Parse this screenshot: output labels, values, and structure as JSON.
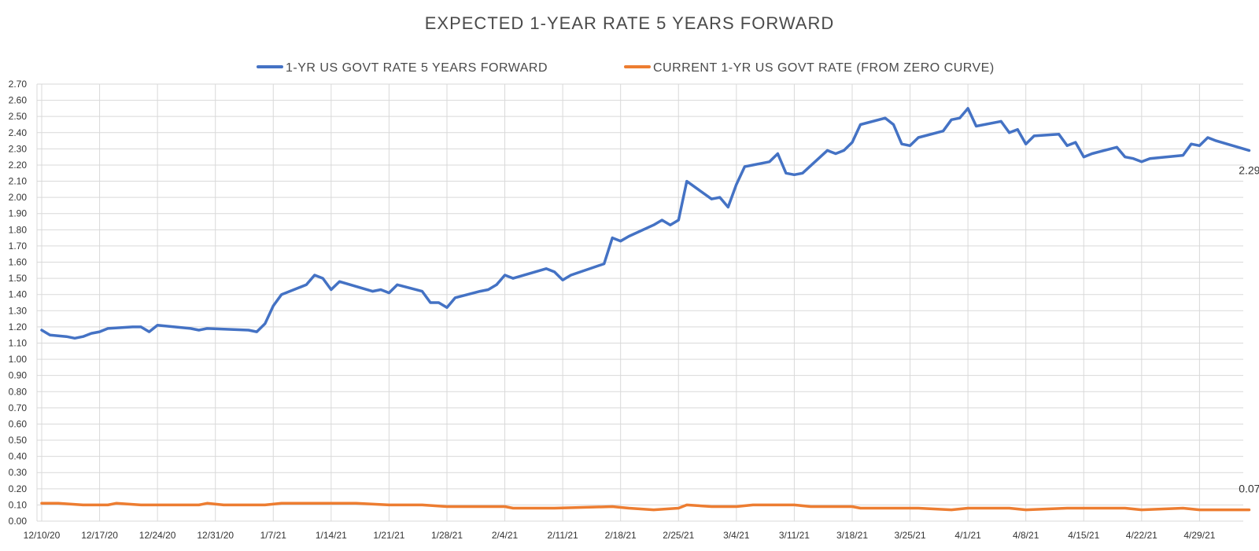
{
  "chart_data": {
    "type": "line",
    "title": "EXPECTED 1-YEAR RATE 5 YEARS FORWARD",
    "xlabel": "",
    "ylabel": "",
    "ylim": [
      0,
      2.7
    ],
    "y_tick_step": 0.1,
    "legend_position": "top-center",
    "grid": true,
    "x_ticks": [
      {
        "label": "12/10/20",
        "day": 0
      },
      {
        "label": "12/17/20",
        "day": 7
      },
      {
        "label": "12/24/20",
        "day": 14
      },
      {
        "label": "12/31/20",
        "day": 21
      },
      {
        "label": "1/7/21",
        "day": 28
      },
      {
        "label": "1/14/21",
        "day": 35
      },
      {
        "label": "1/21/21",
        "day": 42
      },
      {
        "label": "1/28/21",
        "day": 49
      },
      {
        "label": "2/4/21",
        "day": 56
      },
      {
        "label": "2/11/21",
        "day": 63
      },
      {
        "label": "2/18/21",
        "day": 70
      },
      {
        "label": "2/25/21",
        "day": 77
      },
      {
        "label": "3/4/21",
        "day": 84
      },
      {
        "label": "3/11/21",
        "day": 91
      },
      {
        "label": "3/18/21",
        "day": 98
      },
      {
        "label": "3/25/21",
        "day": 105
      },
      {
        "label": "4/1/21",
        "day": 112
      },
      {
        "label": "4/8/21",
        "day": 119
      },
      {
        "label": "4/15/21",
        "day": 126
      },
      {
        "label": "4/22/21",
        "day": 133
      },
      {
        "label": "4/29/21",
        "day": 140
      }
    ],
    "x_range_days": [
      0,
      146
    ],
    "series": [
      {
        "name": "1-YR US GOVT RATE 5 YEARS FORWARD",
        "color": "#4472c4",
        "end_label": "2.29",
        "points": [
          [
            0,
            1.18
          ],
          [
            1,
            1.15
          ],
          [
            3,
            1.14
          ],
          [
            4,
            1.13
          ],
          [
            5,
            1.14
          ],
          [
            6,
            1.16
          ],
          [
            7,
            1.17
          ],
          [
            8,
            1.19
          ],
          [
            11,
            1.2
          ],
          [
            12,
            1.2
          ],
          [
            13,
            1.17
          ],
          [
            14,
            1.21
          ],
          [
            18,
            1.19
          ],
          [
            19,
            1.18
          ],
          [
            20,
            1.19
          ],
          [
            25,
            1.18
          ],
          [
            26,
            1.17
          ],
          [
            27,
            1.22
          ],
          [
            28,
            1.33
          ],
          [
            29,
            1.4
          ],
          [
            32,
            1.46
          ],
          [
            33,
            1.52
          ],
          [
            34,
            1.5
          ],
          [
            35,
            1.43
          ],
          [
            36,
            1.48
          ],
          [
            40,
            1.42
          ],
          [
            41,
            1.43
          ],
          [
            42,
            1.41
          ],
          [
            43,
            1.46
          ],
          [
            46,
            1.42
          ],
          [
            47,
            1.35
          ],
          [
            48,
            1.35
          ],
          [
            49,
            1.32
          ],
          [
            50,
            1.38
          ],
          [
            53,
            1.42
          ],
          [
            54,
            1.43
          ],
          [
            55,
            1.46
          ],
          [
            56,
            1.52
          ],
          [
            57,
            1.5
          ],
          [
            61,
            1.56
          ],
          [
            62,
            1.54
          ],
          [
            63,
            1.49
          ],
          [
            64,
            1.52
          ],
          [
            68,
            1.59
          ],
          [
            69,
            1.75
          ],
          [
            70,
            1.73
          ],
          [
            71,
            1.76
          ],
          [
            74,
            1.83
          ],
          [
            75,
            1.86
          ],
          [
            76,
            1.83
          ],
          [
            77,
            1.86
          ],
          [
            78,
            2.1
          ],
          [
            81,
            1.99
          ],
          [
            82,
            2.0
          ],
          [
            83,
            1.94
          ],
          [
            84,
            2.08
          ],
          [
            85,
            2.19
          ],
          [
            88,
            2.22
          ],
          [
            89,
            2.27
          ],
          [
            90,
            2.15
          ],
          [
            91,
            2.14
          ],
          [
            92,
            2.15
          ],
          [
            95,
            2.29
          ],
          [
            96,
            2.27
          ],
          [
            97,
            2.29
          ],
          [
            98,
            2.34
          ],
          [
            99,
            2.45
          ],
          [
            102,
            2.49
          ],
          [
            103,
            2.45
          ],
          [
            104,
            2.33
          ],
          [
            105,
            2.32
          ],
          [
            106,
            2.37
          ],
          [
            109,
            2.41
          ],
          [
            110,
            2.48
          ],
          [
            111,
            2.49
          ],
          [
            112,
            2.55
          ],
          [
            113,
            2.44
          ],
          [
            116,
            2.47
          ],
          [
            117,
            2.4
          ],
          [
            118,
            2.42
          ],
          [
            119,
            2.33
          ],
          [
            120,
            2.38
          ],
          [
            123,
            2.39
          ],
          [
            124,
            2.32
          ],
          [
            125,
            2.34
          ],
          [
            126,
            2.25
          ],
          [
            127,
            2.27
          ],
          [
            130,
            2.31
          ],
          [
            131,
            2.25
          ],
          [
            132,
            2.24
          ],
          [
            133,
            2.22
          ],
          [
            134,
            2.24
          ],
          [
            138,
            2.26
          ],
          [
            139,
            2.33
          ],
          [
            140,
            2.32
          ],
          [
            141,
            2.37
          ],
          [
            142,
            2.35
          ],
          [
            146,
            2.29
          ]
        ]
      },
      {
        "name": "CURRENT 1-YR US GOVT RATE (FROM ZERO CURVE)",
        "color": "#ed7d31",
        "end_label": "0.07",
        "points": [
          [
            0,
            0.11
          ],
          [
            2,
            0.11
          ],
          [
            5,
            0.1
          ],
          [
            8,
            0.1
          ],
          [
            9,
            0.11
          ],
          [
            12,
            0.1
          ],
          [
            19,
            0.1
          ],
          [
            20,
            0.11
          ],
          [
            22,
            0.1
          ],
          [
            26,
            0.1
          ],
          [
            27,
            0.1
          ],
          [
            29,
            0.11
          ],
          [
            33,
            0.11
          ],
          [
            35,
            0.11
          ],
          [
            38,
            0.11
          ],
          [
            42,
            0.1
          ],
          [
            46,
            0.1
          ],
          [
            49,
            0.09
          ],
          [
            51,
            0.09
          ],
          [
            56,
            0.09
          ],
          [
            57,
            0.08
          ],
          [
            60,
            0.08
          ],
          [
            62,
            0.08
          ],
          [
            69,
            0.09
          ],
          [
            71,
            0.08
          ],
          [
            74,
            0.07
          ],
          [
            77,
            0.08
          ],
          [
            78,
            0.1
          ],
          [
            81,
            0.09
          ],
          [
            84,
            0.09
          ],
          [
            86,
            0.1
          ],
          [
            89,
            0.1
          ],
          [
            90,
            0.1
          ],
          [
            91,
            0.1
          ],
          [
            93,
            0.09
          ],
          [
            98,
            0.09
          ],
          [
            99,
            0.08
          ],
          [
            102,
            0.08
          ],
          [
            106,
            0.08
          ],
          [
            110,
            0.07
          ],
          [
            112,
            0.08
          ],
          [
            117,
            0.08
          ],
          [
            119,
            0.07
          ],
          [
            124,
            0.08
          ],
          [
            129,
            0.08
          ],
          [
            131,
            0.08
          ],
          [
            133,
            0.07
          ],
          [
            138,
            0.08
          ],
          [
            140,
            0.07
          ],
          [
            143,
            0.07
          ],
          [
            145,
            0.07
          ],
          [
            146,
            0.07
          ]
        ]
      }
    ]
  }
}
